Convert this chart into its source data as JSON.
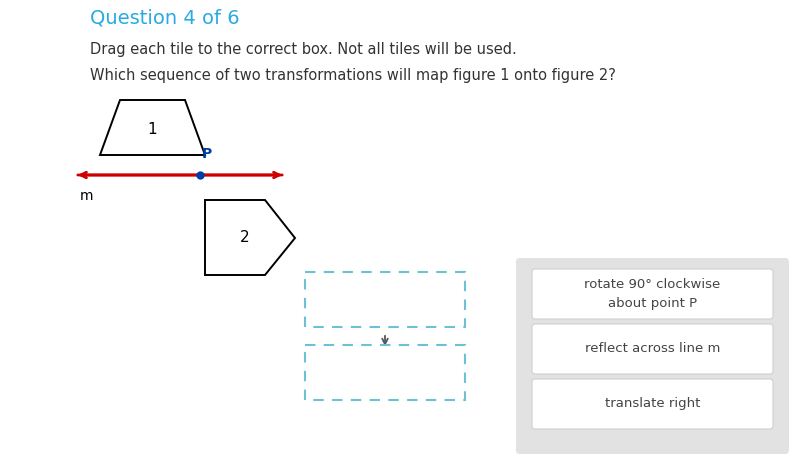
{
  "bg_color": "#ffffff",
  "title": "Question 4 of 6",
  "title_color": "#29ABE2",
  "title_fontsize": 14,
  "instruction1": "Drag each tile to the correct box. Not all tiles will be used.",
  "instruction2": "Which sequence of two transformations will map figure 1 onto figure 2?",
  "text_color": "#333333",
  "text_fontsize": 10.5,
  "fig1_label": "1",
  "fig2_label": "2",
  "line_color": "#CC0000",
  "point_color": "#003DA5",
  "panel_bg": "#e2e2e2",
  "tile_bg": "#ffffff",
  "tile_border": "#d0d0d0",
  "tile1_text": "rotate 90° clockwise\nabout point P",
  "tile2_text": "reflect across line m",
  "tile3_text": "translate right",
  "dbox_color": "#6DC0D5",
  "arrow_color": "#555555"
}
